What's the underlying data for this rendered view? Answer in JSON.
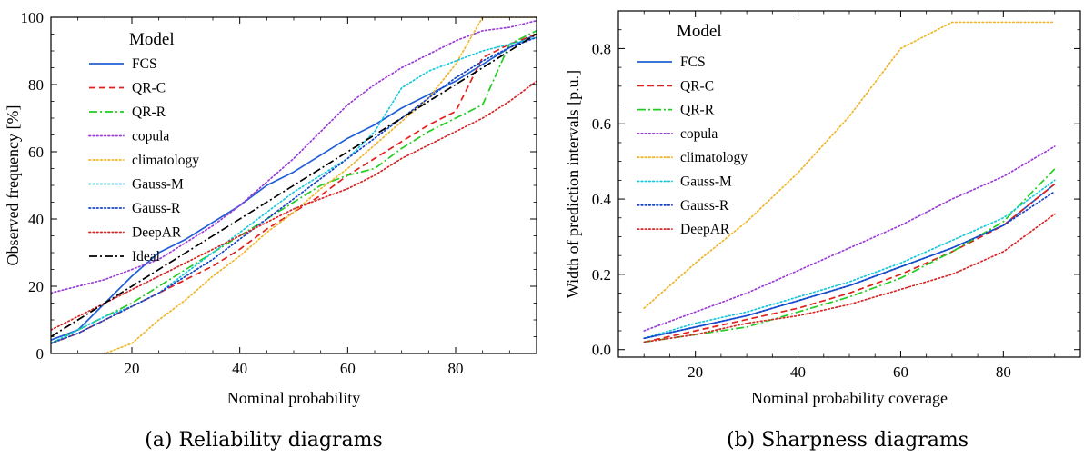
{
  "chart_data": [
    {
      "type": "line",
      "caption": "(a) Reliability diagrams",
      "xlabel": "Nominal probability",
      "ylabel": "Observed frequency [%]",
      "xlim": [
        5,
        95
      ],
      "ylim": [
        0,
        100
      ],
      "xticks": [
        20,
        40,
        60,
        80
      ],
      "yticks": [
        0,
        20,
        40,
        60,
        80,
        100
      ],
      "grid": false,
      "legend": {
        "title": "Model",
        "placement": "upper-left"
      },
      "series": [
        {
          "name": "FCS",
          "color": "#1f5fd6",
          "dash": "solid",
          "x": [
            5,
            10,
            15,
            20,
            25,
            30,
            35,
            40,
            45,
            50,
            55,
            60,
            65,
            70,
            75,
            80,
            85,
            90,
            95
          ],
          "y": [
            4,
            7,
            15,
            23,
            30,
            34,
            39,
            44,
            50,
            54,
            59,
            64,
            68,
            73,
            77,
            81,
            86,
            91,
            95
          ]
        },
        {
          "name": "QR-C",
          "color": "#e0201b",
          "dash": "dashed",
          "x": [
            5,
            10,
            15,
            20,
            25,
            30,
            35,
            40,
            45,
            50,
            55,
            60,
            65,
            70,
            75,
            80,
            85,
            90,
            95
          ],
          "y": [
            3,
            6,
            10,
            14,
            18,
            22,
            26,
            31,
            37,
            42,
            47,
            53,
            58,
            63,
            68,
            72,
            88,
            92,
            95
          ]
        },
        {
          "name": "QR-R",
          "color": "#22cc22",
          "dash": "dashdot",
          "x": [
            5,
            10,
            15,
            20,
            25,
            30,
            35,
            40,
            45,
            50,
            55,
            60,
            65,
            70,
            75,
            80,
            85,
            90,
            95
          ],
          "y": [
            3,
            7,
            11,
            15,
            20,
            25,
            30,
            35,
            40,
            45,
            50,
            53,
            55,
            61,
            66,
            70,
            74,
            92,
            96
          ]
        },
        {
          "name": "copula",
          "color": "#9a3fd6",
          "dash": "dotted",
          "x": [
            5,
            10,
            15,
            20,
            25,
            30,
            35,
            40,
            45,
            50,
            55,
            60,
            65,
            70,
            75,
            80,
            85,
            90,
            95
          ],
          "y": [
            18,
            20,
            22,
            25,
            28,
            33,
            38,
            44,
            51,
            58,
            66,
            74,
            80,
            85,
            89,
            93,
            96,
            97,
            99
          ]
        },
        {
          "name": "climatology",
          "color": "#f0b528",
          "dash": "dotted",
          "x": [
            5,
            10,
            15,
            20,
            25,
            30,
            35,
            40,
            45,
            50,
            55,
            60,
            65,
            70,
            75,
            80,
            85,
            90,
            95
          ],
          "y": [
            -6,
            -5,
            0,
            3,
            10,
            16,
            23,
            29,
            36,
            42,
            49,
            55,
            62,
            69,
            76,
            86,
            100,
            100,
            100
          ]
        },
        {
          "name": "Gauss-M",
          "color": "#18c8dc",
          "dash": "dotted",
          "x": [
            5,
            10,
            15,
            20,
            25,
            30,
            35,
            40,
            45,
            50,
            55,
            60,
            65,
            70,
            75,
            80,
            85,
            90,
            95
          ],
          "y": [
            3,
            7,
            11,
            14,
            18,
            24,
            30,
            36,
            42,
            48,
            53,
            58,
            66,
            79,
            84,
            87,
            90,
            92,
            94
          ]
        },
        {
          "name": "Gauss-R",
          "color": "#1846c8",
          "dash": "dotted",
          "x": [
            5,
            10,
            15,
            20,
            25,
            30,
            35,
            40,
            45,
            50,
            55,
            60,
            65,
            70,
            75,
            80,
            85,
            90,
            95
          ],
          "y": [
            3,
            6,
            10,
            14,
            18,
            23,
            28,
            34,
            40,
            46,
            52,
            58,
            64,
            70,
            76,
            82,
            87,
            91,
            94
          ]
        },
        {
          "name": "DeepAR",
          "color": "#d62828",
          "dash": "dotted",
          "x": [
            5,
            10,
            15,
            20,
            25,
            30,
            35,
            40,
            45,
            50,
            55,
            60,
            65,
            70,
            75,
            80,
            85,
            90,
            95
          ],
          "y": [
            7,
            11,
            15,
            19,
            23,
            27,
            31,
            35,
            39,
            43,
            46,
            49,
            53,
            58,
            62,
            66,
            70,
            75,
            81
          ]
        },
        {
          "name": "Ideal",
          "color": "#000000",
          "dash": "dashdot",
          "x": [
            5,
            95
          ],
          "y": [
            5,
            95
          ]
        }
      ]
    },
    {
      "type": "line",
      "caption": "(b) Sharpness diagrams",
      "xlabel": "Nominal probability coverage",
      "ylabel": "Width of prediction intervals [p.u.]",
      "xlim": [
        5,
        95
      ],
      "ylim": [
        -0.02,
        0.9
      ],
      "xticks": [
        20,
        40,
        60,
        80
      ],
      "yticks": [
        0.0,
        0.2,
        0.4,
        0.6,
        0.8
      ],
      "ytick_labels": [
        "0.0",
        "0.2",
        "0.4",
        "0.6",
        "0.8"
      ],
      "grid": false,
      "legend": {
        "title": "Model",
        "placement": "upper-left"
      },
      "series": [
        {
          "name": "FCS",
          "color": "#1f5fd6",
          "dash": "solid",
          "x": [
            10,
            20,
            30,
            40,
            50,
            60,
            70,
            80,
            90
          ],
          "y": [
            0.03,
            0.06,
            0.09,
            0.13,
            0.17,
            0.22,
            0.27,
            0.33,
            0.44
          ]
        },
        {
          "name": "QR-C",
          "color": "#e0201b",
          "dash": "dashed",
          "x": [
            10,
            20,
            30,
            40,
            50,
            60,
            70,
            80,
            90
          ],
          "y": [
            0.02,
            0.05,
            0.08,
            0.11,
            0.15,
            0.2,
            0.26,
            0.33,
            0.44
          ]
        },
        {
          "name": "QR-R",
          "color": "#22cc22",
          "dash": "dashdot",
          "x": [
            10,
            20,
            30,
            40,
            50,
            60,
            70,
            80,
            90
          ],
          "y": [
            0.02,
            0.04,
            0.06,
            0.1,
            0.14,
            0.19,
            0.26,
            0.34,
            0.48
          ]
        },
        {
          "name": "copula",
          "color": "#9a3fd6",
          "dash": "dotted",
          "x": [
            10,
            20,
            30,
            40,
            50,
            60,
            70,
            80,
            90
          ],
          "y": [
            0.05,
            0.1,
            0.15,
            0.21,
            0.27,
            0.33,
            0.4,
            0.46,
            0.54
          ]
        },
        {
          "name": "climatology",
          "color": "#f0b528",
          "dash": "dotted",
          "x": [
            10,
            20,
            30,
            40,
            50,
            60,
            70,
            80,
            90
          ],
          "y": [
            0.11,
            0.23,
            0.34,
            0.47,
            0.62,
            0.8,
            0.87,
            0.87,
            0.87
          ]
        },
        {
          "name": "Gauss-M",
          "color": "#18c8dc",
          "dash": "dotted",
          "x": [
            10,
            20,
            30,
            40,
            50,
            60,
            70,
            80,
            90
          ],
          "y": [
            0.03,
            0.07,
            0.1,
            0.14,
            0.18,
            0.23,
            0.29,
            0.35,
            0.45
          ]
        },
        {
          "name": "Gauss-R",
          "color": "#1846c8",
          "dash": "dotted",
          "x": [
            10,
            20,
            30,
            40,
            50,
            60,
            70,
            80,
            90
          ],
          "y": [
            0.03,
            0.06,
            0.09,
            0.13,
            0.17,
            0.22,
            0.27,
            0.33,
            0.42
          ]
        },
        {
          "name": "DeepAR",
          "color": "#d62828",
          "dash": "dotted",
          "x": [
            10,
            20,
            30,
            40,
            50,
            60,
            70,
            80,
            90
          ],
          "y": [
            0.02,
            0.04,
            0.07,
            0.09,
            0.12,
            0.16,
            0.2,
            0.26,
            0.36
          ]
        }
      ]
    }
  ]
}
